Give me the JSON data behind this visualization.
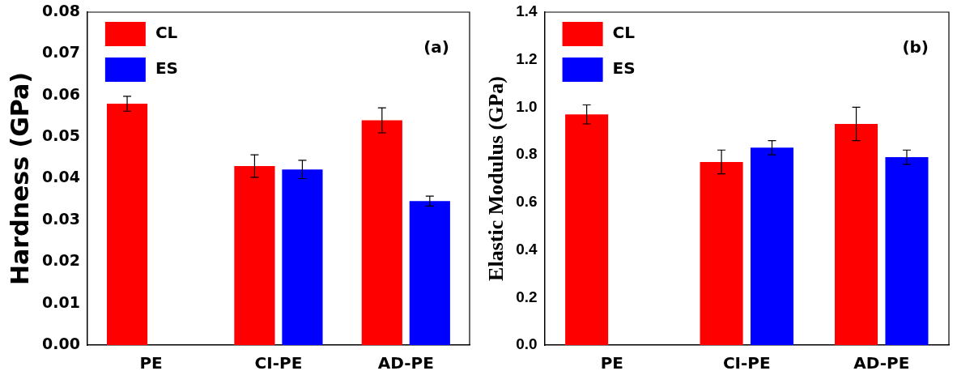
{
  "chart_data": [
    {
      "type": "bar",
      "ylabel": "Hardness (GPa)",
      "categories": [
        "PE",
        "CI-PE",
        "AD-PE"
      ],
      "series": [
        {
          "name": "CL",
          "color": "#ff0000",
          "values": [
            0.058,
            0.043,
            0.054
          ],
          "errors": [
            0.0018,
            0.0027,
            0.003
          ]
        },
        {
          "name": "ES",
          "color": "#0000ff",
          "values": [
            null,
            0.0422,
            0.0346
          ],
          "errors": [
            null,
            0.0022,
            0.0012
          ]
        }
      ],
      "ylim": [
        0,
        0.08
      ],
      "yticks": [
        {
          "value": 0,
          "label": "0.00"
        },
        {
          "value": 0.01,
          "label": "0.01"
        },
        {
          "value": 0.02,
          "label": "0.02"
        },
        {
          "value": 0.03,
          "label": "0.03"
        },
        {
          "value": 0.04,
          "label": "0.04"
        },
        {
          "value": 0.05,
          "label": "0.05"
        },
        {
          "value": 0.06,
          "label": "0.06"
        },
        {
          "value": 0.07,
          "label": "0.07"
        },
        {
          "value": 0.08,
          "label": "0.08"
        }
      ],
      "grid": false,
      "legend": "top left",
      "annotations": [
        "(a)"
      ]
    },
    {
      "type": "bar",
      "ylabel": "Elastic Modulus (GPa)",
      "categories": [
        "PE",
        "CI-PE",
        "AD-PE"
      ],
      "series": [
        {
          "name": "CL",
          "color": "#ff0000",
          "values": [
            0.97,
            0.77,
            0.93
          ],
          "errors": [
            0.04,
            0.05,
            0.07
          ]
        },
        {
          "name": "ES",
          "color": "#0000ff",
          "values": [
            null,
            0.83,
            0.79
          ],
          "errors": [
            null,
            0.03,
            0.03
          ]
        }
      ],
      "ylim": [
        0,
        1.4
      ],
      "yticks": [
        {
          "value": 0,
          "label": "0.0"
        },
        {
          "value": 0.2,
          "label": "0.2"
        },
        {
          "value": 0.4,
          "label": "0.4"
        },
        {
          "value": 0.6,
          "label": "0.6"
        },
        {
          "value": 0.8,
          "label": "0.8"
        },
        {
          "value": 1,
          "label": "1.0"
        },
        {
          "value": 1.2,
          "label": "1.2"
        },
        {
          "value": 1.4,
          "label": "1.4"
        }
      ],
      "grid": false,
      "legend": "top left",
      "annotations": [
        "(b)"
      ]
    }
  ]
}
